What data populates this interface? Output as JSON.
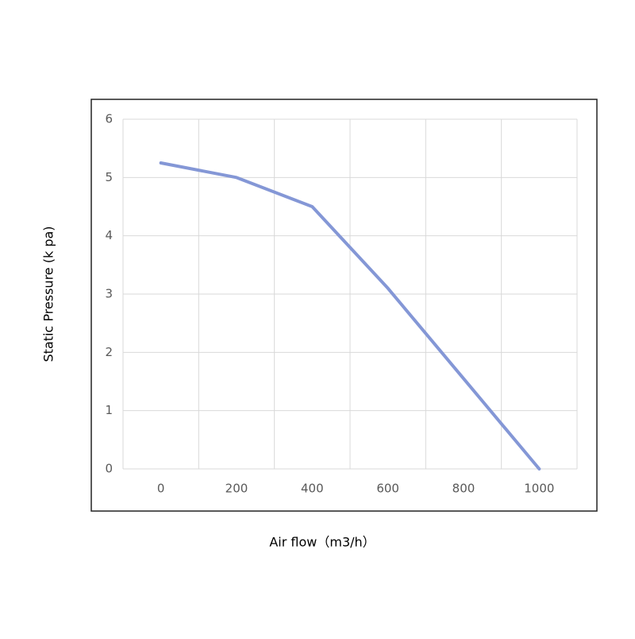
{
  "chart_data": {
    "type": "line",
    "x_label": "Air flow（m3/h）",
    "y_label": "Static Pressure (k pa)",
    "categories": [
      "0",
      "200",
      "400",
      "600",
      "800",
      "1000"
    ],
    "series": [
      {
        "name": "Static Pressure",
        "color": "#8497d6",
        "values": [
          5.25,
          5.0,
          4.5,
          3.1,
          1.55,
          0
        ]
      }
    ],
    "ylim": [
      0,
      6
    ],
    "yticks": [
      0,
      1,
      2,
      3,
      4,
      5,
      6
    ],
    "grid": true
  }
}
